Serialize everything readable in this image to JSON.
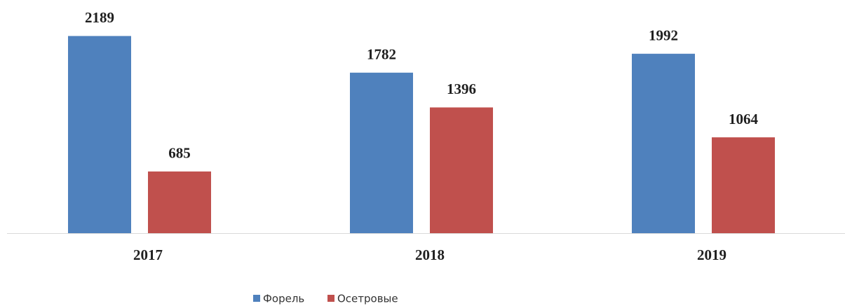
{
  "chart_data": {
    "type": "bar",
    "categories": [
      "2017",
      "2018",
      "2019"
    ],
    "series": [
      {
        "name": "Форель",
        "color": "#4f81bd",
        "values": [
          2189,
          1782,
          1992
        ]
      },
      {
        "name": "Осетровые",
        "color": "#c0504d",
        "values": [
          685,
          1396,
          1064
        ]
      }
    ],
    "ylim": [
      0,
      2200
    ],
    "legend": "bottom"
  }
}
